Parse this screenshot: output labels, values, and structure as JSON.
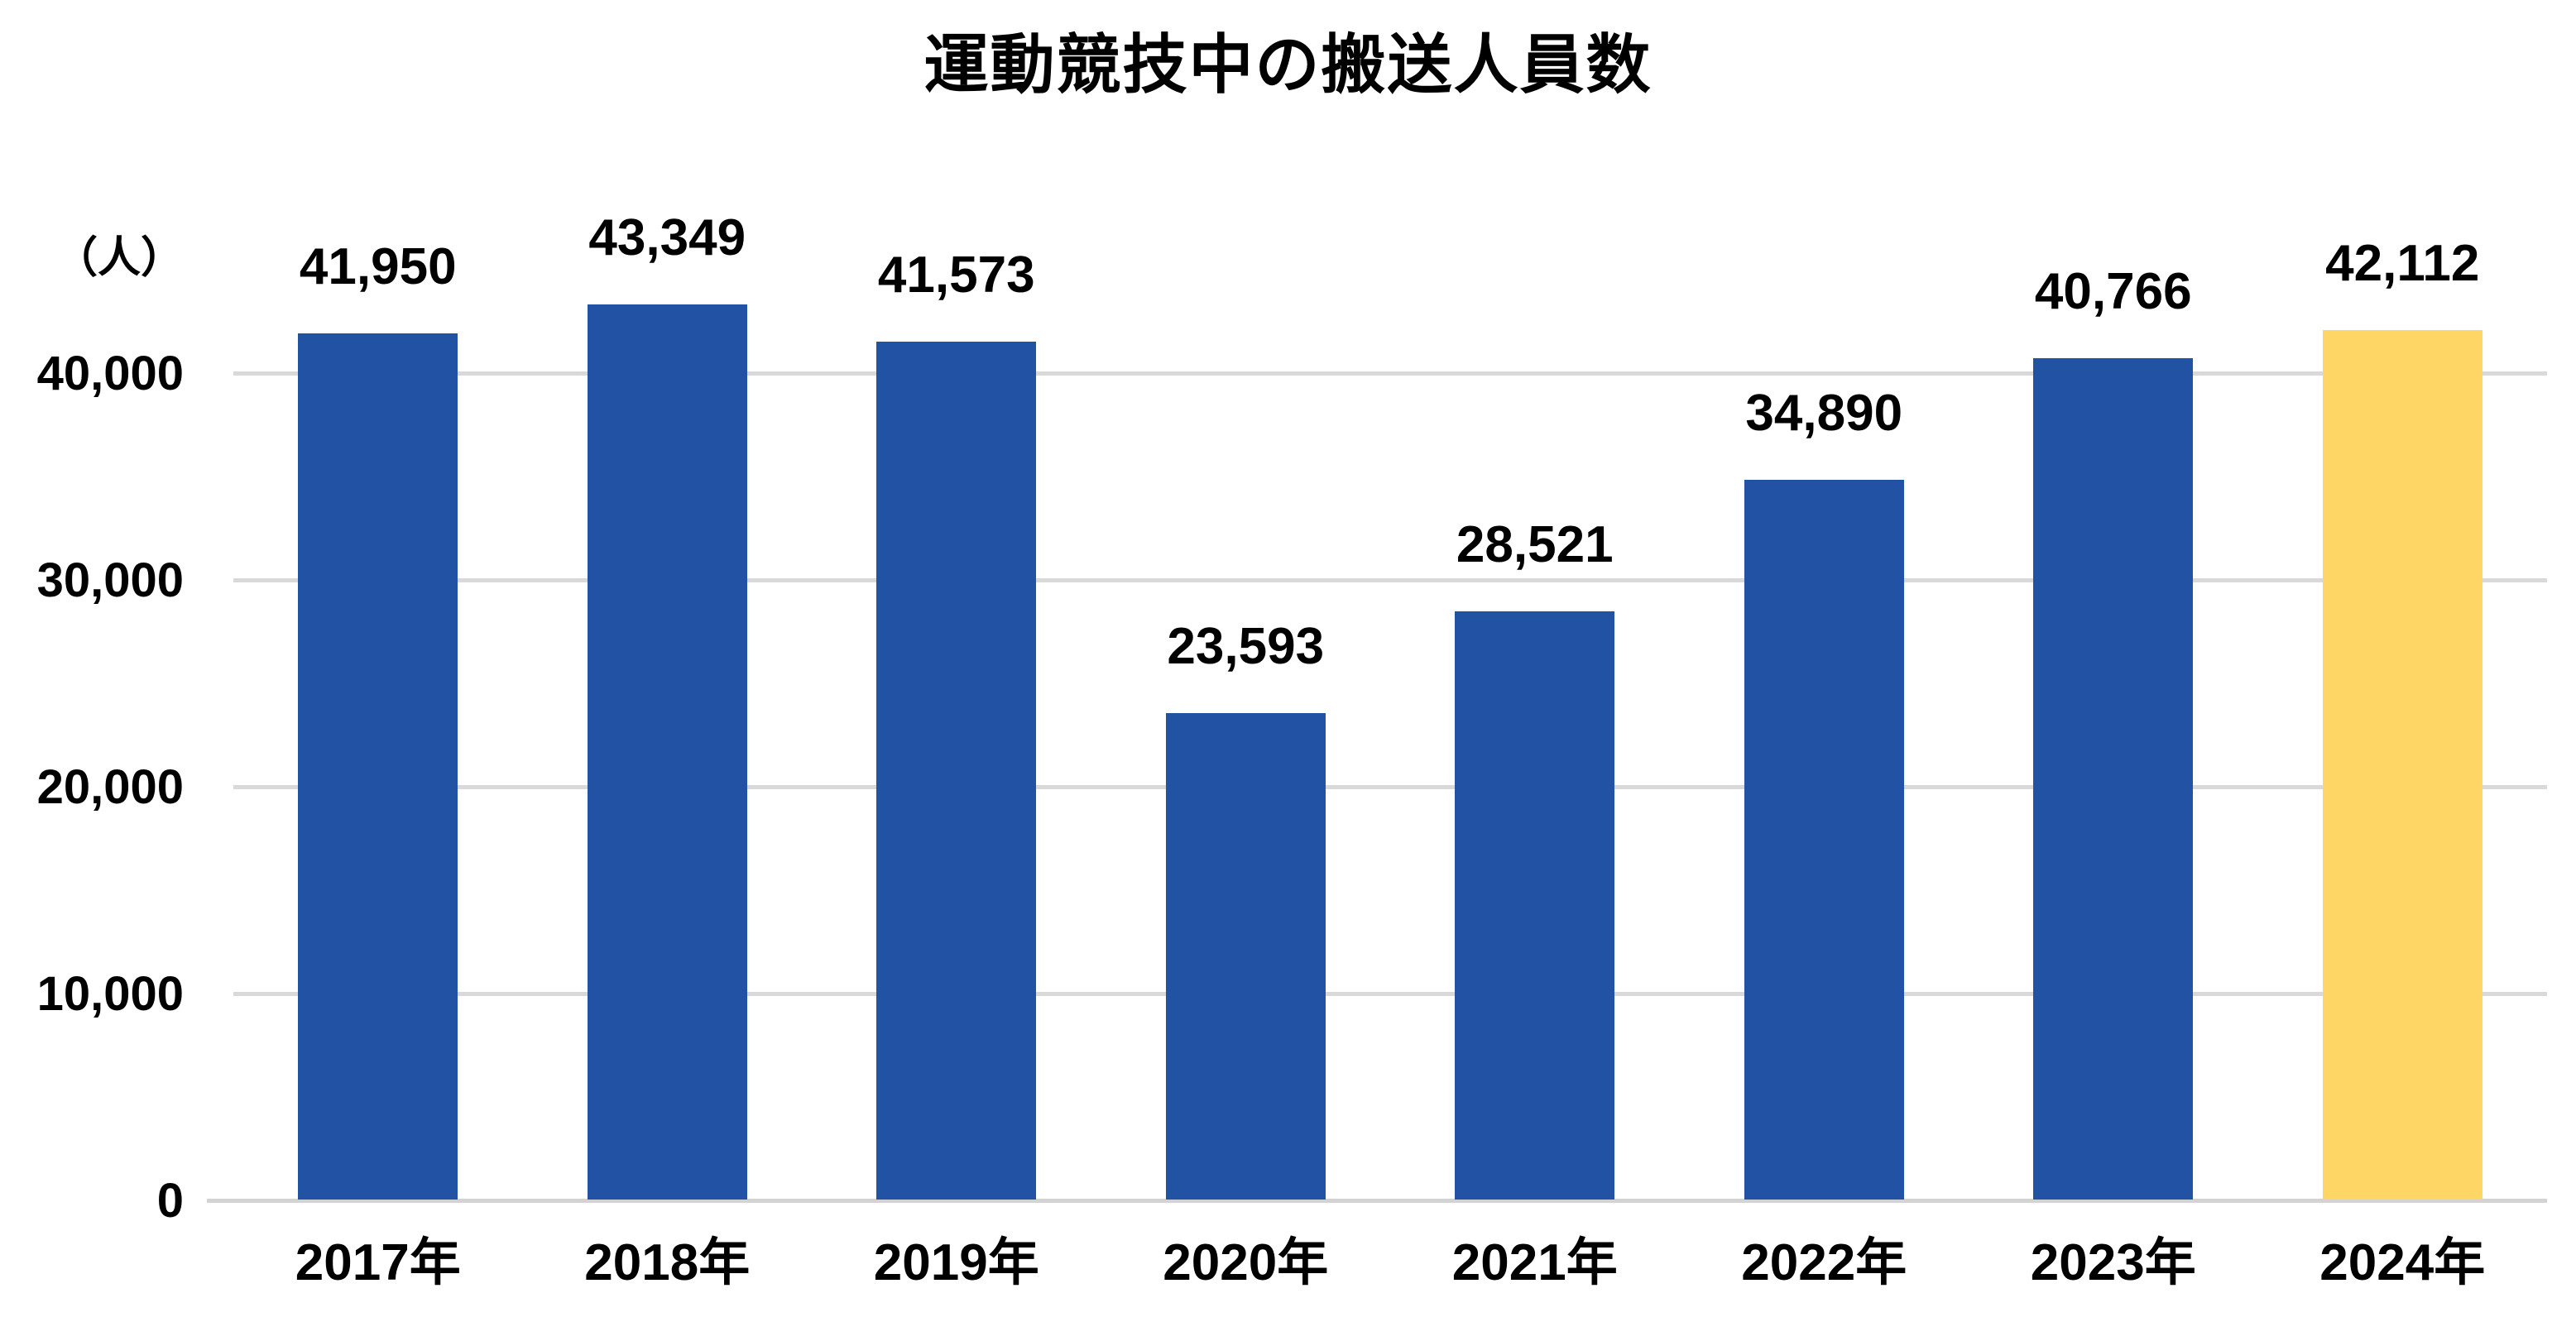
{
  "title": "運動競技中の搬送人員数",
  "y_axis": {
    "unit_label": "（人）",
    "tick_labels": [
      "0",
      "10,000",
      "20,000",
      "30,000",
      "40,000"
    ],
    "tick_values": [
      0,
      10000,
      20000,
      30000,
      40000
    ]
  },
  "chart_data": {
    "type": "bar",
    "title": "運動競技中の搬送人員数",
    "categories": [
      "2017年",
      "2018年",
      "2019年",
      "2020年",
      "2021年",
      "2022年",
      "2023年",
      "2024年"
    ],
    "values": [
      41950,
      43349,
      41573,
      23593,
      28521,
      34890,
      40766,
      42112
    ],
    "value_labels": [
      "41,950",
      "43,349",
      "41,573",
      "23,593",
      "28,521",
      "34,890",
      "40,766",
      "42,112"
    ],
    "xlabel": "",
    "ylabel": "（人）",
    "ylim": [
      0,
      45000
    ],
    "yticks": [
      0,
      10000,
      20000,
      30000,
      40000
    ],
    "grid": true,
    "legend": false,
    "highlight_index": 7,
    "colors": {
      "bar": "#2152A4",
      "bar_highlight": "#FDD665",
      "gridline": "#D9D9D9",
      "text": "#000000",
      "background": "#FFFFFF"
    }
  }
}
